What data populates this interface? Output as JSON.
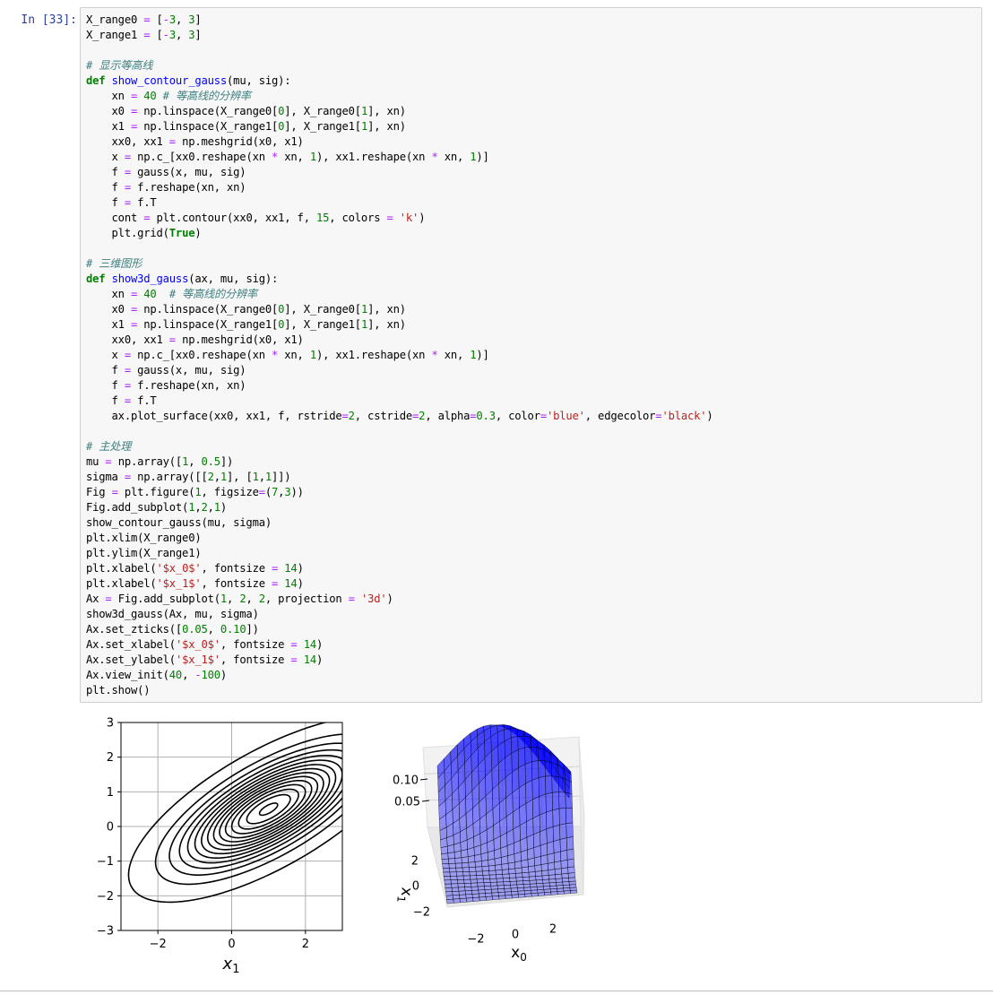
{
  "cell": {
    "prompt": "In  [33]:"
  },
  "code_lines": [
    "X_range0 = [-3, 3]",
    "X_range1 = [-3, 3]",
    "",
    "# 显示等高线",
    "def show_contour_gauss(mu, sig):",
    "    xn = 40 # 等高线的分辨率",
    "    x0 = np.linspace(X_range0[0], X_range0[1], xn)",
    "    x1 = np.linspace(X_range1[0], X_range1[1], xn)",
    "    xx0, xx1 = np.meshgrid(x0, x1)",
    "    x = np.c_[xx0.reshape(xn * xn, 1), xx1.reshape(xn * xn, 1)]",
    "    f = gauss(x, mu, sig)",
    "    f = f.reshape(xn, xn)",
    "    f = f.T",
    "    cont = plt.contour(xx0, xx1, f, 15, colors = 'k')",
    "    plt.grid(True)",
    "",
    "# 三维图形",
    "def show3d_gauss(ax, mu, sig):",
    "    xn = 40  # 等高线的分辨率",
    "    x0 = np.linspace(X_range0[0], X_range0[1], xn)",
    "    x1 = np.linspace(X_range1[0], X_range1[1], xn)",
    "    xx0, xx1 = np.meshgrid(x0, x1)",
    "    x = np.c_[xx0.reshape(xn * xn, 1), xx1.reshape(xn * xn, 1)]",
    "    f = gauss(x, mu, sig)",
    "    f = f.reshape(xn, xn)",
    "    f = f.T",
    "    ax.plot_surface(xx0, xx1, f, rstride=2, cstride=2, alpha=0.3, color='blue', edgecolor='black')",
    "",
    "# 主处理",
    "mu = np.array([1, 0.5])",
    "sigma = np.array([[2,1], [1,1]])",
    "Fig = plt.figure(1, figsize=(7,3))",
    "Fig.add_subplot(1,2,1)",
    "show_contour_gauss(mu, sigma)",
    "plt.xlim(X_range0)",
    "plt.ylim(X_range1)",
    "plt.xlabel('$x_0$', fontsize = 14)",
    "plt.xlabel('$x_1$', fontsize = 14)",
    "Ax = Fig.add_subplot(1, 2, 2, projection = '3d')",
    "show3d_gauss(Ax, mu, sigma)",
    "Ax.set_zticks([0.05, 0.10])",
    "Ax.set_xlabel('$x_0$', fontsize = 14)",
    "Ax.set_ylabel('$x_1$', fontsize = 14)",
    "Ax.view_init(40, -100)",
    "plt.show()"
  ],
  "chart_data": [
    {
      "type": "contour",
      "xlim": [
        -3,
        3
      ],
      "ylim": [
        -3,
        3
      ],
      "xticks": [
        "−2",
        "0",
        "2"
      ],
      "yticks": [
        "−3",
        "−2",
        "−1",
        "0",
        "1",
        "2",
        "3"
      ],
      "xlabel": "x",
      "xlabel_sub": "1",
      "grid": true,
      "mu": [
        1,
        0.5
      ],
      "sigma": [
        [
          2,
          1
        ],
        [
          1,
          1
        ]
      ],
      "levels": 15,
      "line_color": "#000000"
    },
    {
      "type": "surface3d",
      "zticks": [
        "0.10",
        "0.05"
      ],
      "xticks": [
        "−2",
        "0",
        "2"
      ],
      "yticks": [
        "2",
        "0",
        "−2"
      ],
      "xlabel": "x",
      "xlabel_sub": "0",
      "ylabel": "x",
      "ylabel_sub": "1",
      "surface_color": "#0000ff",
      "alpha": 0.3,
      "edge_color": "#000000"
    }
  ]
}
